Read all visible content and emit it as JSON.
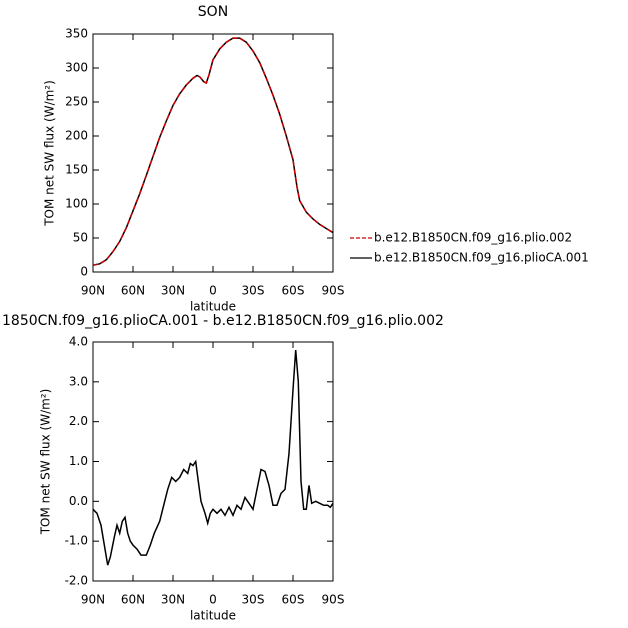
{
  "chart_data": [
    {
      "type": "line",
      "title": "SON",
      "y_label": "TOM net SW flux (W/m²)",
      "x_label": "latitude",
      "xlim": [
        90,
        -90
      ],
      "xticks": [
        {
          "value": 90,
          "label": "90N"
        },
        {
          "value": 60,
          "label": "60N"
        },
        {
          "value": 30,
          "label": "30N"
        },
        0,
        {
          "value": -30,
          "label": "30S"
        },
        {
          "value": -60,
          "label": "60S"
        },
        {
          "value": -90,
          "label": "90S"
        }
      ],
      "ylim": [
        0,
        350
      ],
      "yticks": [
        0,
        50,
        100,
        150,
        200,
        250,
        300,
        350
      ],
      "legend": "right",
      "x": [
        90,
        85,
        80,
        75,
        70,
        65,
        60,
        55,
        50,
        45,
        40,
        35,
        30,
        25,
        20,
        15,
        12,
        10,
        7,
        5,
        3,
        0,
        -5,
        -10,
        -15,
        -20,
        -25,
        -30,
        -35,
        -40,
        -45,
        -50,
        -55,
        -60,
        -63,
        -65,
        -70,
        -75,
        -80,
        -85,
        -90
      ],
      "series": [
        {
          "name": "b.e12.B1850CN.f09_g16.plioCA.001",
          "color": "#000000",
          "dashed": false,
          "values": [
            10,
            12,
            18,
            30,
            45,
            65,
            90,
            115,
            142,
            170,
            198,
            222,
            245,
            262,
            275,
            285,
            289,
            287,
            280,
            278,
            290,
            312,
            328,
            338,
            344,
            344,
            338,
            325,
            308,
            285,
            260,
            232,
            200,
            165,
            125,
            105,
            88,
            78,
            70,
            64,
            58
          ]
        },
        {
          "name": "b.e12.B1850CN.f09_g16.plio.002",
          "color": "#cc0000",
          "dashed": true,
          "values": [
            10,
            12,
            18,
            30,
            45,
            65,
            90,
            115,
            142,
            170,
            198,
            222,
            245,
            262,
            275,
            285,
            289,
            287,
            280,
            278,
            290,
            312,
            328,
            338,
            344,
            344,
            338,
            325,
            308,
            285,
            260,
            232,
            200,
            165,
            125,
            105,
            88,
            78,
            70,
            64,
            58
          ]
        }
      ]
    },
    {
      "type": "line",
      "title": "1850CN.f09_g16.plioCA.001 - b.e12.B1850CN.f09_g16.plio.002",
      "y_label": "TOM net SW flux (W/m²)",
      "x_label": "latitude",
      "xlim": [
        90,
        -90
      ],
      "xticks": [
        {
          "value": 90,
          "label": "90N"
        },
        {
          "value": 60,
          "label": "60N"
        },
        {
          "value": 30,
          "label": "30N"
        },
        0,
        {
          "value": -30,
          "label": "30S"
        },
        {
          "value": -60,
          "label": "60S"
        },
        {
          "value": -90,
          "label": "90S"
        }
      ],
      "ylim": [
        -2,
        4
      ],
      "yticks": [
        {
          "value": -2,
          "label": "-2.0"
        },
        {
          "value": -1,
          "label": "-1.0"
        },
        {
          "value": 0,
          "label": "0.0"
        },
        {
          "value": 1,
          "label": "1.0"
        },
        {
          "value": 2,
          "label": "2.0"
        },
        {
          "value": 3,
          "label": "3.0"
        },
        {
          "value": 4,
          "label": "4.0"
        }
      ],
      "color": "#000000",
      "x": [
        90,
        87,
        84,
        81,
        79,
        77,
        74,
        72,
        70,
        68,
        66,
        64,
        62,
        60,
        57,
        54,
        50,
        47,
        44,
        40,
        37,
        34,
        31,
        28,
        25,
        22,
        19,
        17,
        15,
        13,
        11,
        9,
        6,
        4,
        2,
        0,
        -3,
        -6,
        -9,
        -12,
        -15,
        -18,
        -21,
        -24,
        -27,
        -30,
        -33,
        -36,
        -39,
        -42,
        -45,
        -48,
        -51,
        -54,
        -57,
        -60,
        -62,
        -64,
        -66,
        -68,
        -70,
        -72,
        -74,
        -77,
        -80,
        -83,
        -86,
        -88,
        -90
      ],
      "values": [
        -0.2,
        -0.3,
        -0.6,
        -1.2,
        -1.6,
        -1.4,
        -0.9,
        -0.6,
        -0.8,
        -0.5,
        -0.4,
        -0.8,
        -1.0,
        -1.1,
        -1.2,
        -1.35,
        -1.35,
        -1.1,
        -0.8,
        -0.5,
        -0.1,
        0.3,
        0.6,
        0.5,
        0.6,
        0.8,
        0.7,
        0.95,
        0.9,
        1.0,
        0.5,
        0.0,
        -0.3,
        -0.55,
        -0.3,
        -0.2,
        -0.3,
        -0.2,
        -0.35,
        -0.15,
        -0.35,
        -0.1,
        -0.2,
        0.1,
        -0.05,
        -0.2,
        0.3,
        0.8,
        0.75,
        0.4,
        -0.1,
        -0.1,
        0.2,
        0.3,
        1.2,
        2.8,
        3.8,
        3.0,
        0.5,
        -0.2,
        -0.2,
        0.4,
        -0.05,
        0.0,
        -0.05,
        -0.1,
        -0.1,
        -0.15,
        -0.05
      ]
    }
  ]
}
